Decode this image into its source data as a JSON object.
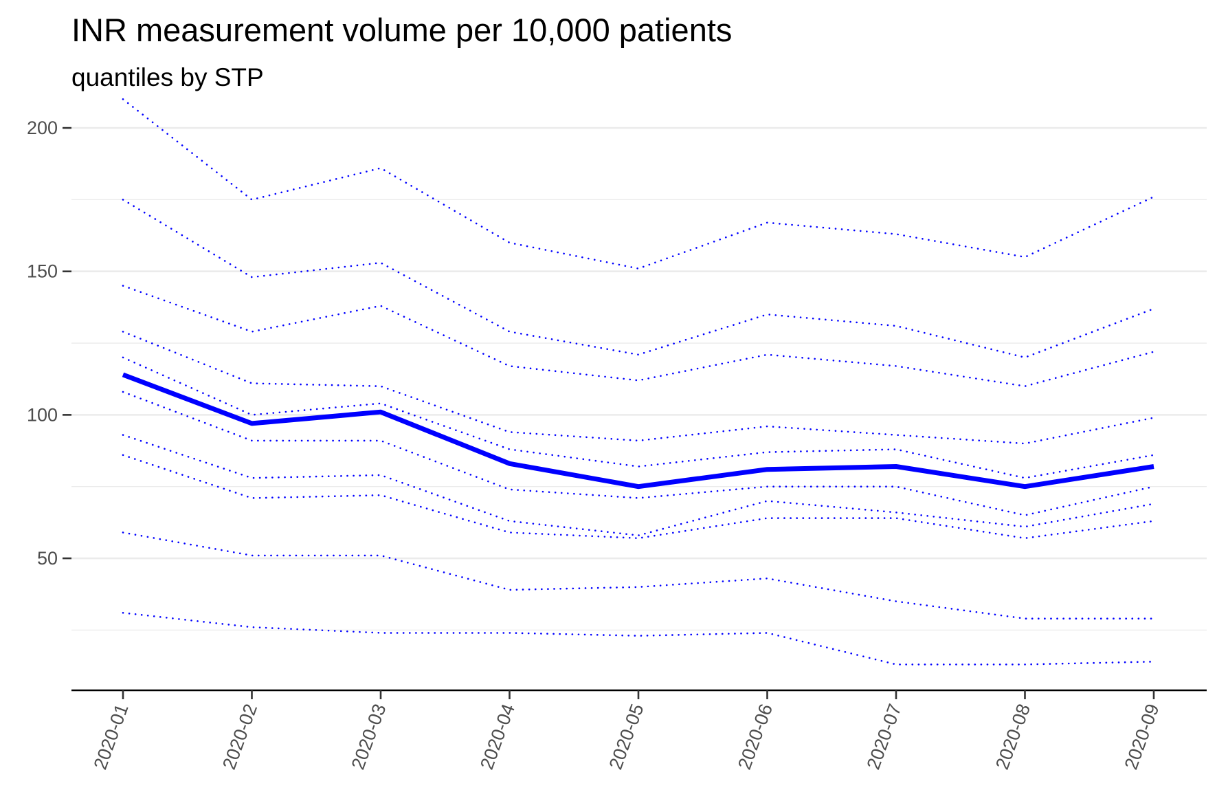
{
  "title": "INR measurement volume per 10,000 patients",
  "subtitle": "quantiles by STP",
  "chart_data": {
    "type": "line",
    "title": "INR measurement volume per 10,000 patients",
    "subtitle": "quantiles by STP",
    "xlabel": "",
    "ylabel": "",
    "x": [
      "2020-01",
      "2020-02",
      "2020-03",
      "2020-04",
      "2020-05",
      "2020-06",
      "2020-07",
      "2020-08",
      "2020-09"
    ],
    "yticks": [
      50,
      100,
      150,
      200
    ],
    "ylim": [
      4,
      212
    ],
    "grid": true,
    "legend": "none",
    "line_color": "#0000ff",
    "series": [
      {
        "values": [
          210.0,
          175.0,
          186.0,
          160.0,
          151.0,
          167.0,
          163.0,
          155.0,
          176.0
        ],
        "style": "dotted"
      },
      {
        "values": [
          175.0,
          148.0,
          153.0,
          129.0,
          121.0,
          135.0,
          131.0,
          120.0,
          137.0
        ],
        "style": "dotted"
      },
      {
        "values": [
          145.0,
          129.0,
          138.0,
          117.0,
          112.0,
          121.0,
          117.0,
          110.0,
          122.0
        ],
        "style": "dotted"
      },
      {
        "values": [
          129.0,
          111.0,
          110.0,
          94.0,
          91.0,
          96.0,
          93.0,
          90.0,
          99.0
        ],
        "style": "dotted"
      },
      {
        "values": [
          120.0,
          100.0,
          104.0,
          88.0,
          82.0,
          87.0,
          88.0,
          78.0,
          86.0
        ],
        "style": "dotted"
      },
      {
        "values": [
          114.0,
          97.0,
          101.0,
          83.0,
          75.0,
          81.0,
          82.0,
          75.0,
          82.0
        ],
        "style": "solid"
      },
      {
        "values": [
          108.0,
          91.0,
          91.0,
          74.0,
          71.0,
          75.0,
          75.0,
          65.0,
          75.0
        ],
        "style": "dotted"
      },
      {
        "values": [
          93.0,
          78.0,
          79.0,
          63.0,
          58.0,
          70.0,
          66.0,
          61.0,
          69.0
        ],
        "style": "dotted"
      },
      {
        "values": [
          86.0,
          71.0,
          72.0,
          59.0,
          57.0,
          64.0,
          64.0,
          57.0,
          63.0
        ],
        "style": "dotted"
      },
      {
        "values": [
          59.0,
          51.0,
          51.0,
          39.0,
          40.0,
          43.0,
          35.0,
          29.0,
          29.0
        ],
        "style": "dotted"
      },
      {
        "values": [
          31.0,
          26.0,
          24.0,
          24.0,
          23.0,
          24.0,
          13.0,
          13.0,
          14.0
        ],
        "style": "dotted"
      }
    ]
  }
}
